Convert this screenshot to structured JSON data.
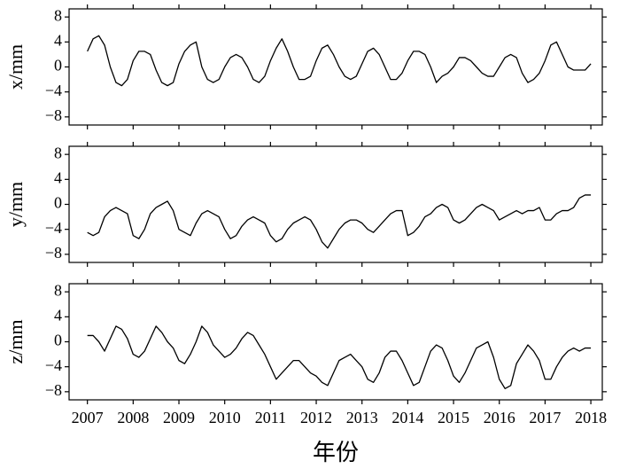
{
  "chart_data": [
    {
      "type": "line",
      "y_label": "x/mm",
      "x": [
        2007,
        2007.125,
        2007.25,
        2007.375,
        2007.5,
        2007.625,
        2007.75,
        2007.875,
        2008,
        2008.125,
        2008.25,
        2008.375,
        2008.5,
        2008.625,
        2008.75,
        2008.875,
        2009,
        2009.125,
        2009.25,
        2009.375,
        2009.5,
        2009.625,
        2009.75,
        2009.875,
        2010,
        2010.125,
        2010.25,
        2010.375,
        2010.5,
        2010.625,
        2010.75,
        2010.875,
        2011,
        2011.125,
        2011.25,
        2011.375,
        2011.5,
        2011.625,
        2011.75,
        2011.875,
        2012,
        2012.125,
        2012.25,
        2012.375,
        2012.5,
        2012.625,
        2012.75,
        2012.875,
        2013,
        2013.125,
        2013.25,
        2013.375,
        2013.5,
        2013.625,
        2013.75,
        2013.875,
        2014,
        2014.125,
        2014.25,
        2014.375,
        2014.5,
        2014.625,
        2014.75,
        2014.875,
        2015,
        2015.125,
        2015.25,
        2015.375,
        2015.5,
        2015.625,
        2015.75,
        2015.875,
        2016,
        2016.125,
        2016.25,
        2016.375,
        2016.5,
        2016.625,
        2016.75,
        2016.875,
        2017,
        2017.125,
        2017.25,
        2017.375,
        2017.5,
        2017.625,
        2017.75,
        2017.875,
        2018
      ],
      "series": [
        {
          "color": "#000000",
          "values": [
            2.5,
            4.5,
            5,
            3.5,
            0,
            -2.5,
            -3,
            -2,
            1,
            2.5,
            2.5,
            2,
            -0.5,
            -2.5,
            -3,
            -2.5,
            0.5,
            2.5,
            3.5,
            4,
            0,
            -2,
            -2.5,
            -2,
            0,
            1.5,
            2,
            1.5,
            0,
            -2,
            -2.5,
            -1.5,
            1,
            3,
            4.5,
            2.5,
            0,
            -2,
            -2,
            -1.5,
            1,
            3,
            3.5,
            2,
            0,
            -1.5,
            -2,
            -1.5,
            0.5,
            2.5,
            3,
            2,
            0,
            -2,
            -2,
            -1,
            1,
            2.5,
            2.5,
            2,
            0,
            -2.5,
            -1.5,
            -1,
            0,
            1.5,
            1.5,
            1,
            0,
            -1,
            -1.5,
            -1.5,
            0,
            1.5,
            2,
            1.5,
            -1,
            -2.5,
            -2,
            -1,
            1,
            3.5,
            4,
            2,
            0,
            -0.5,
            -0.5,
            -0.5,
            0.5
          ]
        }
      ],
      "xlim": [
        2006.6,
        2018.25
      ],
      "xticks": [
        2007,
        2008,
        2009,
        2010,
        2011,
        2012,
        2013,
        2014,
        2015,
        2016,
        2017,
        2018
      ],
      "ylim": [
        -9.3,
        9.3
      ],
      "yticks": [
        {
          "value": -8,
          "label": "−8"
        },
        {
          "value": -4,
          "label": "−4"
        },
        0,
        4,
        8
      ]
    },
    {
      "type": "line",
      "y_label": "y/mm",
      "x": [
        2007,
        2007.125,
        2007.25,
        2007.375,
        2007.5,
        2007.625,
        2007.75,
        2007.875,
        2008,
        2008.125,
        2008.25,
        2008.375,
        2008.5,
        2008.625,
        2008.75,
        2008.875,
        2009,
        2009.125,
        2009.25,
        2009.375,
        2009.5,
        2009.625,
        2009.75,
        2009.875,
        2010,
        2010.125,
        2010.25,
        2010.375,
        2010.5,
        2010.625,
        2010.75,
        2010.875,
        2011,
        2011.125,
        2011.25,
        2011.375,
        2011.5,
        2011.625,
        2011.75,
        2011.875,
        2012,
        2012.125,
        2012.25,
        2012.375,
        2012.5,
        2012.625,
        2012.75,
        2012.875,
        2013,
        2013.125,
        2013.25,
        2013.375,
        2013.5,
        2013.625,
        2013.75,
        2013.875,
        2014,
        2014.125,
        2014.25,
        2014.375,
        2014.5,
        2014.625,
        2014.75,
        2014.875,
        2015,
        2015.125,
        2015.25,
        2015.375,
        2015.5,
        2015.625,
        2015.75,
        2015.875,
        2016,
        2016.125,
        2016.25,
        2016.375,
        2016.5,
        2016.625,
        2016.75,
        2016.875,
        2017,
        2017.125,
        2017.25,
        2017.375,
        2017.5,
        2017.625,
        2017.75,
        2017.875,
        2018
      ],
      "series": [
        {
          "color": "#000000",
          "values": [
            -4.5,
            -5,
            -4.5,
            -2,
            -1,
            -0.5,
            -1,
            -1.5,
            -5,
            -5.5,
            -4,
            -1.5,
            -0.5,
            0,
            0.5,
            -1,
            -4,
            -4.5,
            -5,
            -3,
            -1.5,
            -1,
            -1.5,
            -2,
            -4,
            -5.5,
            -5,
            -3.5,
            -2.5,
            -2,
            -2.5,
            -3,
            -5,
            -6,
            -5.5,
            -4,
            -3,
            -2.5,
            -2,
            -2.5,
            -4,
            -6,
            -7,
            -5.5,
            -4,
            -3,
            -2.5,
            -2.5,
            -3,
            -4,
            -4.5,
            -3.5,
            -2.5,
            -1.5,
            -1,
            -1,
            -5,
            -4.5,
            -3.5,
            -2,
            -1.5,
            -0.5,
            0,
            -0.5,
            -2.5,
            -3,
            -2.5,
            -1.5,
            -0.5,
            0,
            -0.5,
            -1,
            -2.5,
            -2,
            -1.5,
            -1,
            -1.5,
            -1,
            -1,
            -0.5,
            -2.5,
            -2.5,
            -1.5,
            -1,
            -1,
            -0.5,
            1,
            1.5,
            1.5
          ]
        }
      ],
      "xlim": [
        2006.6,
        2018.25
      ],
      "xticks": [
        2007,
        2008,
        2009,
        2010,
        2011,
        2012,
        2013,
        2014,
        2015,
        2016,
        2017,
        2018
      ],
      "ylim": [
        -9.3,
        9.3
      ],
      "yticks": [
        {
          "value": -8,
          "label": "−8"
        },
        {
          "value": -4,
          "label": "−4"
        },
        0,
        4,
        8
      ]
    },
    {
      "type": "line",
      "y_label": "z/mm",
      "x_label": "年份",
      "x": [
        2007,
        2007.125,
        2007.25,
        2007.375,
        2007.5,
        2007.625,
        2007.75,
        2007.875,
        2008,
        2008.125,
        2008.25,
        2008.375,
        2008.5,
        2008.625,
        2008.75,
        2008.875,
        2009,
        2009.125,
        2009.25,
        2009.375,
        2009.5,
        2009.625,
        2009.75,
        2009.875,
        2010,
        2010.125,
        2010.25,
        2010.375,
        2010.5,
        2010.625,
        2010.75,
        2010.875,
        2011,
        2011.125,
        2011.25,
        2011.375,
        2011.5,
        2011.625,
        2011.75,
        2011.875,
        2012,
        2012.125,
        2012.25,
        2012.375,
        2012.5,
        2012.625,
        2012.75,
        2012.875,
        2013,
        2013.125,
        2013.25,
        2013.375,
        2013.5,
        2013.625,
        2013.75,
        2013.875,
        2014,
        2014.125,
        2014.25,
        2014.375,
        2014.5,
        2014.625,
        2014.75,
        2014.875,
        2015,
        2015.125,
        2015.25,
        2015.375,
        2015.5,
        2015.625,
        2015.75,
        2015.875,
        2016,
        2016.125,
        2016.25,
        2016.375,
        2016.5,
        2016.625,
        2016.75,
        2016.875,
        2017,
        2017.125,
        2017.25,
        2017.375,
        2017.5,
        2017.625,
        2017.75,
        2017.875,
        2018
      ],
      "series": [
        {
          "color": "#000000",
          "values": [
            1,
            1,
            0,
            -1.5,
            0.5,
            2.5,
            2,
            0.5,
            -2,
            -2.5,
            -1.5,
            0.5,
            2.5,
            1.5,
            0,
            -1,
            -3,
            -3.5,
            -2,
            0,
            2.5,
            1.5,
            -0.5,
            -1.5,
            -2.5,
            -2,
            -1,
            0.5,
            1.5,
            1,
            -0.5,
            -2,
            -4,
            -6,
            -5,
            -4,
            -3,
            -3,
            -4,
            -5,
            -5.5,
            -6.5,
            -7,
            -5,
            -3,
            -2.5,
            -2,
            -3,
            -4,
            -6,
            -6.5,
            -5,
            -2.5,
            -1.5,
            -1.5,
            -3,
            -5,
            -7,
            -6.5,
            -4,
            -1.5,
            -0.5,
            -1,
            -3,
            -5.5,
            -6.5,
            -5,
            -3,
            -1,
            -0.5,
            0,
            -2.5,
            -6,
            -7.5,
            -7,
            -3.5,
            -2,
            -0.5,
            -1.5,
            -3,
            -6,
            -6,
            -4,
            -2.5,
            -1.5,
            -1,
            -1.5,
            -1,
            -1
          ]
        }
      ],
      "xlim": [
        2006.6,
        2018.25
      ],
      "xticks": [
        2007,
        2008,
        2009,
        2010,
        2011,
        2012,
        2013,
        2014,
        2015,
        2016,
        2017,
        2018
      ],
      "ylim": [
        -9.3,
        9.3
      ],
      "yticks": [
        {
          "value": -8,
          "label": "−8"
        },
        {
          "value": -4,
          "label": "−4"
        },
        0,
        4,
        8
      ]
    }
  ]
}
